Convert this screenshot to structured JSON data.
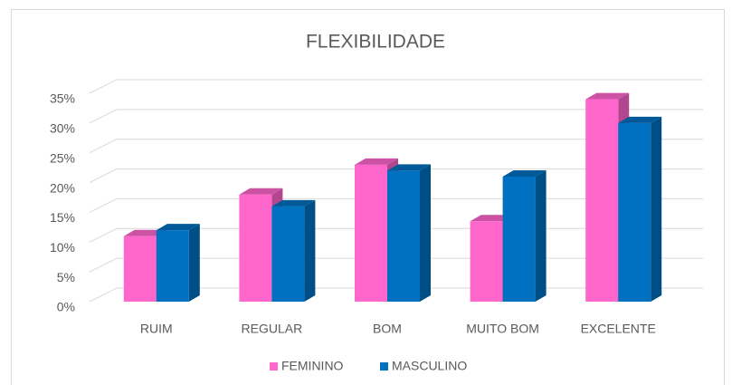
{
  "chart_data": {
    "type": "bar3d",
    "title": "FLEXIBILIDADE",
    "categories": [
      "RUIM",
      "REGULAR",
      "BOM",
      "MUITO BOM",
      "EXCELENTE"
    ],
    "series": [
      {
        "name": "FEMININO",
        "color": "#ff66cc",
        "values": [
          11,
          18,
          23,
          13.5,
          34
        ]
      },
      {
        "name": "MASCULINO",
        "color": "#0070c0",
        "values": [
          12,
          16,
          22,
          21,
          30
        ]
      }
    ],
    "ylim": [
      0,
      35
    ],
    "yticks": [
      {
        "value": 0,
        "label": "0%"
      },
      {
        "value": 5,
        "label": "5%"
      },
      {
        "value": 10,
        "label": "10%"
      },
      {
        "value": 15,
        "label": "15%"
      },
      {
        "value": 20,
        "label": "20%"
      },
      {
        "value": 25,
        "label": "25%"
      },
      {
        "value": 30,
        "label": "30%"
      },
      {
        "value": 35,
        "label": "35%"
      }
    ],
    "grid": true,
    "legend": "bottom"
  }
}
